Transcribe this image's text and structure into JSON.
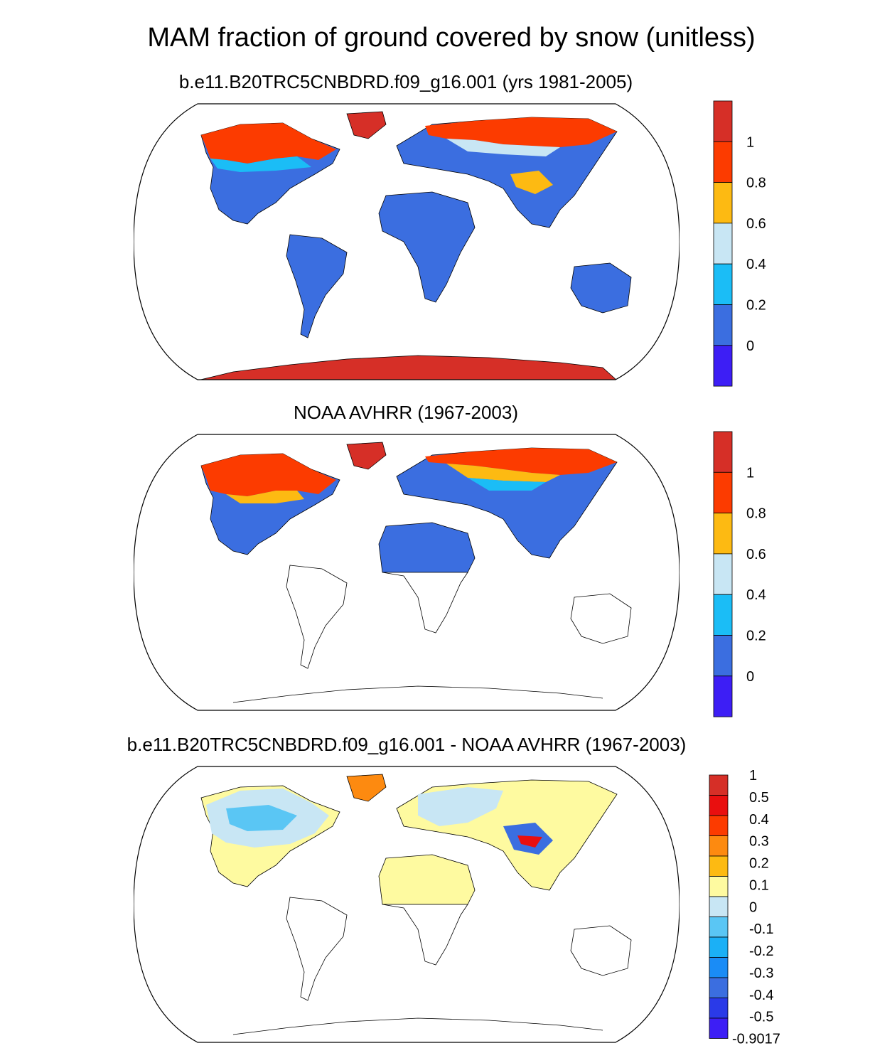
{
  "title": "MAM fraction of ground covered by snow (unitless)",
  "panels": [
    {
      "subtitle": "b.e11.B20TRC5CNBDRD.f09_g16.001 (yrs 1981-2005)",
      "colorbar_labels": [
        "1",
        "0.8",
        "0.6",
        "0.4",
        "0.2",
        "0"
      ],
      "colorbar_colors": [
        "#d62f27",
        "#fc3b00",
        "#fdba12",
        "#c8e6f4",
        "#1bbdf6",
        "#3b6ee0",
        "#3d1ef5"
      ]
    },
    {
      "subtitle": "NOAA AVHRR (1967-2003)",
      "colorbar_labels": [
        "1",
        "0.8",
        "0.6",
        "0.4",
        "0.2",
        "0"
      ],
      "colorbar_colors": [
        "#d62f27",
        "#fc3b00",
        "#fdba12",
        "#c8e6f4",
        "#1bbdf6",
        "#3b6ee0",
        "#3d1ef5"
      ]
    },
    {
      "subtitle": "b.e11.B20TRC5CNBDRD.f09_g16.001 - NOAA AVHRR (1967-2003)",
      "colorbar_labels": [
        "1",
        "0.5",
        "0.4",
        "0.3",
        "0.2",
        "0.1",
        "0",
        "-0.1",
        "-0.2",
        "-0.3",
        "-0.4",
        "-0.5",
        "-0.9017"
      ],
      "colorbar_colors": [
        "#d62f27",
        "#e90f0f",
        "#fc3b00",
        "#fd8a10",
        "#fdba12",
        "#fefaa0",
        "#c8e6f4",
        "#5ac6f4",
        "#1bb0f6",
        "#1a8cf6",
        "#3b6ee0",
        "#2a3ae8",
        "#3d1ef5"
      ]
    }
  ]
}
